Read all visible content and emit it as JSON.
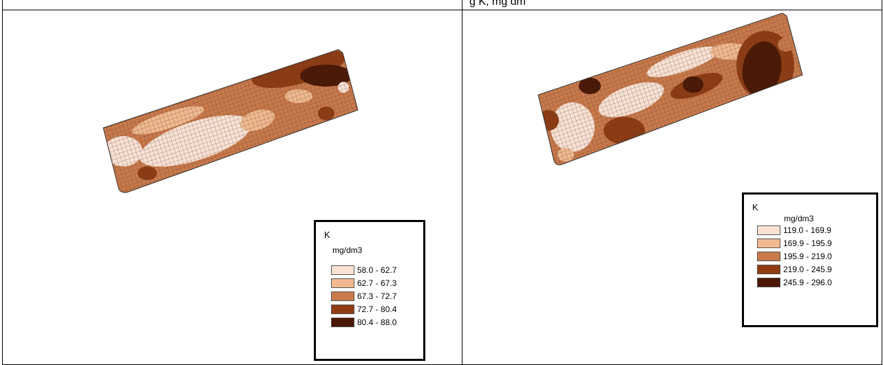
{
  "header": {
    "title": "g  K, mg dm"
  },
  "palette": [
    "#f9e1d3",
    "#f1b98f",
    "#c9794a",
    "#8f3c13",
    "#4a1704"
  ],
  "panels": [
    {
      "legend": {
        "title": "K",
        "unit": "mg/dm3",
        "classes": [
          {
            "label": "58.0 - 62.7"
          },
          {
            "label": "62.7 - 67.3"
          },
          {
            "label": "67.3 - 72.7"
          },
          {
            "label": "72.7 - 80.4"
          },
          {
            "label": "80.4 - 88.0"
          }
        ]
      }
    },
    {
      "legend": {
        "title": "K",
        "unit": "mg/dm3",
        "classes": [
          {
            "label": "119.0 - 169.9"
          },
          {
            "label": "169.9 - 195.9"
          },
          {
            "label": "195.9 - 219.0"
          },
          {
            "label": "219.0 - 245.9"
          },
          {
            "label": "245.9 - 296.0"
          }
        ]
      }
    }
  ]
}
